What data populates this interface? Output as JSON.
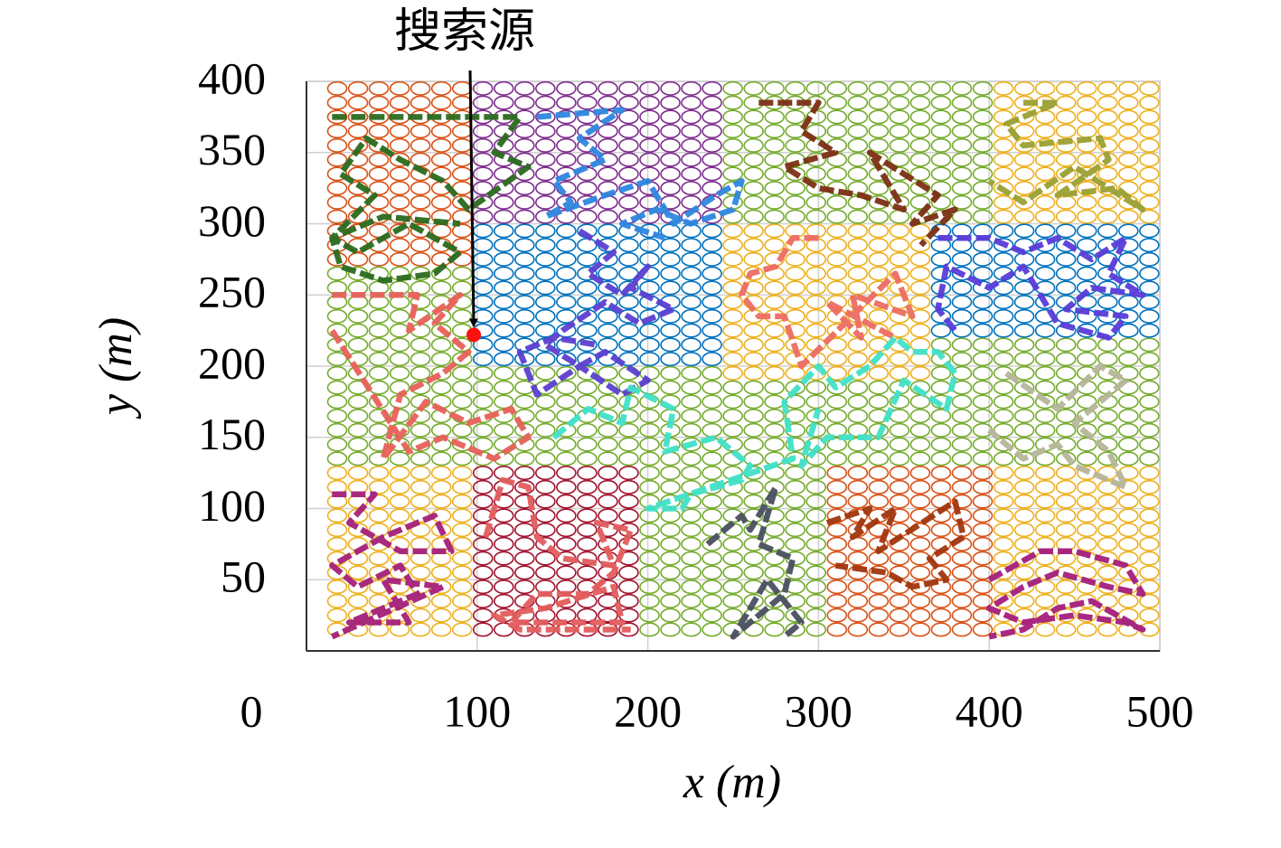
{
  "chart_data": {
    "type": "line",
    "xlabel": "x (m)",
    "ylabel": "y (m)",
    "xlim": [
      0,
      500
    ],
    "ylim": [
      0,
      400
    ],
    "xticks": [
      0,
      100,
      200,
      300,
      400,
      500
    ],
    "yticks": [
      50,
      100,
      150,
      200,
      250,
      300,
      350,
      400
    ],
    "grid": true,
    "annotation": {
      "text": "搜索源",
      "x": 98,
      "y": 222
    },
    "regions": [
      {
        "color": "#d95319",
        "x": [
          0,
          100
        ],
        "y": [
          270,
          400
        ]
      },
      {
        "color": "#7e2f8e",
        "x": [
          100,
          240
        ],
        "y": [
          300,
          400
        ]
      },
      {
        "color": "#77ac30",
        "x": [
          240,
          400
        ],
        "y": [
          300,
          400
        ]
      },
      {
        "color": "#edb120",
        "x": [
          400,
          500
        ],
        "y": [
          300,
          400
        ]
      },
      {
        "color": "#77ac30",
        "x": [
          0,
          100
        ],
        "y": [
          130,
          270
        ]
      },
      {
        "color": "#0072bd",
        "x": [
          100,
          240
        ],
        "y": [
          200,
          300
        ]
      },
      {
        "color": "#edb120",
        "x": [
          240,
          360
        ],
        "y": [
          190,
          300
        ]
      },
      {
        "color": "#0072bd",
        "x": [
          360,
          500
        ],
        "y": [
          220,
          300
        ]
      },
      {
        "color": "#77ac30",
        "x": [
          100,
          240
        ],
        "y": [
          130,
          200
        ]
      },
      {
        "color": "#77ac30",
        "x": [
          240,
          500
        ],
        "y": [
          130,
          190
        ]
      },
      {
        "color": "#77ac30",
        "x": [
          360,
          500
        ],
        "y": [
          190,
          220
        ]
      },
      {
        "color": "#edb120",
        "x": [
          0,
          100
        ],
        "y": [
          0,
          130
        ]
      },
      {
        "color": "#a2142f",
        "x": [
          100,
          200
        ],
        "y": [
          0,
          130
        ]
      },
      {
        "color": "#77ac30",
        "x": [
          200,
          300
        ],
        "y": [
          0,
          130
        ]
      },
      {
        "color": "#d95319",
        "x": [
          300,
          400
        ],
        "y": [
          0,
          130
        ]
      },
      {
        "color": "#edb120",
        "x": [
          400,
          500
        ],
        "y": [
          0,
          130
        ]
      }
    ],
    "series": [
      {
        "color": "#2a6a1e",
        "x": [
          15,
          125,
          110,
          130,
          95,
          80,
          55,
          35,
          20,
          40,
          15,
          30,
          60,
          90,
          75,
          45,
          20,
          15,
          45,
          90
        ],
        "y": [
          375,
          375,
          350,
          340,
          310,
          330,
          345,
          360,
          335,
          320,
          290,
          280,
          300,
          280,
          265,
          260,
          270,
          290,
          305,
          300
        ]
      },
      {
        "color": "#e8605a",
        "x": [
          15,
          65,
          60,
          90,
          75,
          95,
          80,
          55,
          45,
          70,
          95,
          120,
          130,
          110,
          80,
          60,
          15
        ],
        "y": [
          250,
          250,
          225,
          250,
          230,
          210,
          195,
          180,
          135,
          175,
          160,
          170,
          150,
          135,
          150,
          140,
          225
        ]
      },
      {
        "color": "#2e86de",
        "x": [
          135,
          185,
          160,
          175,
          145,
          155,
          140,
          175,
          200,
          215,
          240,
          255,
          250,
          225,
          205,
          185,
          210
        ],
        "y": [
          375,
          380,
          360,
          345,
          330,
          315,
          305,
          320,
          330,
          300,
          320,
          330,
          310,
          300,
          310,
          300,
          290
        ]
      },
      {
        "color": "#5b3fd0",
        "x": [
          160,
          180,
          165,
          185,
          200,
          190,
          215,
          195,
          175,
          150,
          140,
          160,
          175,
          200,
          185,
          160,
          135,
          125,
          145,
          170
        ],
        "y": [
          295,
          280,
          265,
          250,
          270,
          255,
          240,
          230,
          245,
          225,
          215,
          200,
          210,
          190,
          180,
          200,
          180,
          210,
          220,
          215
        ]
      },
      {
        "color": "#7b2e14",
        "x": [
          265,
          300,
          290,
          310,
          280,
          300,
          325,
          350,
          330,
          370,
          355,
          380,
          360
        ],
        "y": [
          385,
          385,
          365,
          350,
          340,
          325,
          320,
          310,
          350,
          320,
          300,
          310,
          285
        ]
      },
      {
        "color": "#9aa032",
        "x": [
          420,
          440,
          410,
          420,
          465,
          470,
          440,
          475,
          490,
          450,
          420,
          400
        ],
        "y": [
          385,
          385,
          370,
          355,
          360,
          345,
          320,
          325,
          310,
          340,
          315,
          330
        ]
      },
      {
        "color": "#ec6b63",
        "x": [
          300,
          285,
          275,
          260,
          255,
          265,
          280,
          290,
          345,
          355,
          320,
          325,
          305,
          345
        ],
        "y": [
          290,
          290,
          270,
          265,
          250,
          235,
          235,
          200,
          265,
          235,
          250,
          220,
          245,
          220
        ]
      },
      {
        "color": "#5a3bd8",
        "x": [
          370,
          400,
          420,
          440,
          460,
          480,
          470,
          490,
          460,
          445,
          480,
          470,
          440,
          420,
          400,
          375,
          370,
          380
        ],
        "y": [
          290,
          290,
          280,
          290,
          275,
          290,
          265,
          250,
          255,
          240,
          235,
          220,
          230,
          270,
          255,
          270,
          240,
          225
        ]
      },
      {
        "color": "#40e0c8",
        "x": [
          145,
          165,
          185,
          190,
          215,
          210,
          240,
          260,
          255,
          225,
          220,
          200,
          285,
          280,
          300,
          310,
          330,
          345,
          355,
          370,
          380,
          375,
          350,
          335,
          305,
          290,
          300
        ],
        "y": [
          150,
          170,
          160,
          185,
          170,
          140,
          150,
          130,
          120,
          110,
          100,
          100,
          135,
          175,
          200,
          185,
          200,
          220,
          210,
          210,
          195,
          170,
          190,
          150,
          150,
          130,
          170
        ]
      },
      {
        "color": "#b5b59a",
        "x": [
          410,
          440,
          465,
          480,
          450,
          470,
          480,
          450,
          440,
          420,
          400
        ],
        "y": [
          195,
          170,
          200,
          190,
          160,
          140,
          115,
          130,
          145,
          135,
          155
        ]
      },
      {
        "color": "#a3207a",
        "x": [
          15,
          40,
          25,
          55,
          85,
          75,
          45,
          15,
          30,
          55,
          65,
          25,
          60,
          45,
          80,
          15
        ],
        "y": [
          110,
          110,
          90,
          70,
          70,
          95,
          80,
          60,
          45,
          60,
          40,
          20,
          20,
          50,
          45,
          10
        ]
      },
      {
        "color": "#e35d5d",
        "x": [
          105,
          115,
          130,
          135,
          150,
          180,
          170,
          190,
          180,
          165,
          135,
          120,
          185,
          180,
          140,
          110,
          125,
          190
        ],
        "y": [
          80,
          120,
          115,
          80,
          65,
          60,
          90,
          85,
          55,
          40,
          40,
          20,
          20,
          45,
          30,
          25,
          15,
          15
        ]
      },
      {
        "color": "#4a4f60",
        "x": [
          235,
          255,
          260,
          275,
          265,
          285,
          280,
          250,
          270,
          290,
          280
        ],
        "y": [
          75,
          95,
          85,
          115,
          75,
          65,
          40,
          10,
          50,
          20,
          10
        ]
      },
      {
        "color": "#a0360e",
        "x": [
          305,
          330,
          320,
          345,
          335,
          380,
          385,
          365,
          375,
          355,
          340,
          310
        ],
        "y": [
          90,
          100,
          80,
          100,
          70,
          105,
          80,
          65,
          50,
          45,
          55,
          60
        ]
      },
      {
        "color": "#a31e7c",
        "x": [
          400,
          430,
          450,
          480,
          490,
          470,
          440,
          420,
          400,
          420,
          450,
          480,
          490,
          460,
          440,
          420,
          400
        ],
        "y": [
          50,
          70,
          70,
          60,
          40,
          45,
          55,
          45,
          30,
          20,
          25,
          20,
          15,
          35,
          30,
          15,
          10
        ]
      }
    ]
  }
}
